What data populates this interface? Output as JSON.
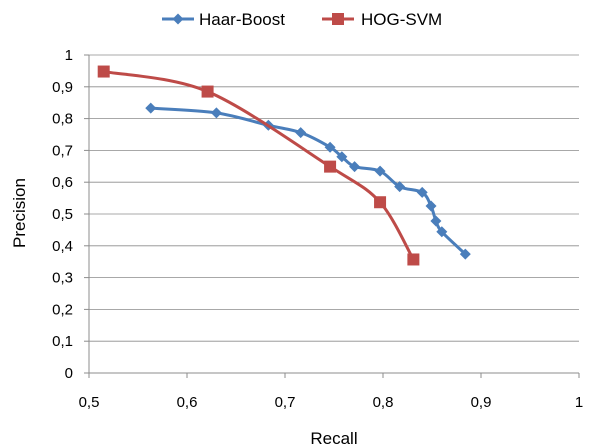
{
  "chart_data": {
    "type": "line",
    "xlabel": "Recall",
    "ylabel": "Precision",
    "xlim": [
      0.5,
      1
    ],
    "ylim": [
      0,
      1
    ],
    "x_ticks": [
      "0,5",
      "0,6",
      "0,7",
      "0,8",
      "0,9",
      "1"
    ],
    "y_ticks": [
      "0",
      "0,1",
      "0,2",
      "0,3",
      "0,4",
      "0,5",
      "0,6",
      "0,7",
      "0,8",
      "0,9",
      "1"
    ],
    "grid": "horizontal",
    "legend_position": "top",
    "series": [
      {
        "name": "Haar-Boost",
        "color": "#4A7EBB",
        "marker": "diamond",
        "points": [
          [
            0.563,
            0.833
          ],
          [
            0.63,
            0.818
          ],
          [
            0.683,
            0.779
          ],
          [
            0.716,
            0.756
          ],
          [
            0.746,
            0.71
          ],
          [
            0.758,
            0.68
          ],
          [
            0.771,
            0.649
          ],
          [
            0.797,
            0.635
          ],
          [
            0.817,
            0.586
          ],
          [
            0.84,
            0.568
          ],
          [
            0.849,
            0.525
          ],
          [
            0.854,
            0.478
          ],
          [
            0.86,
            0.444
          ],
          [
            0.884,
            0.374
          ]
        ]
      },
      {
        "name": "HOG-SVM",
        "color": "#BE4B48",
        "marker": "square",
        "points": [
          [
            0.515,
            0.948
          ],
          [
            0.621,
            0.885
          ],
          [
            0.746,
            0.649
          ],
          [
            0.797,
            0.537
          ],
          [
            0.831,
            0.357
          ]
        ]
      }
    ]
  }
}
